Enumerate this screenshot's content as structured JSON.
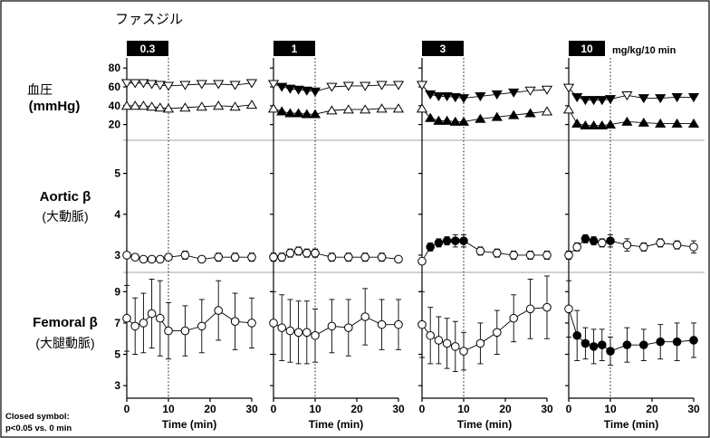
{
  "figure": {
    "drug_label": "ファスジル",
    "dose_unit": "mg/kg/10 min",
    "note_line1": "Closed symbol:",
    "note_line2": "p<0.05 vs. 0 min",
    "doses": [
      "0.3",
      "1",
      "3",
      "10"
    ],
    "rows": [
      {
        "label1": "血圧",
        "label2": "(mmHg)"
      },
      {
        "label1": "Aortic β",
        "label2": "(大動脈)"
      },
      {
        "label1": "Femoral β",
        "label2": "(大腿動脈)"
      }
    ]
  },
  "chart_data": [
    {
      "type": "line",
      "title": "",
      "row_label": "血圧 (mmHg)",
      "xlabel": "Time (min)",
      "xlim": [
        0,
        30
      ],
      "xticks": [
        0,
        10,
        20,
        30
      ],
      "ylim": [
        10,
        85
      ],
      "yticks": [
        20,
        40,
        60,
        80
      ],
      "infusion_window": [
        0,
        10
      ],
      "marker_style": "triangle",
      "panels": [
        {
          "dose": "0.3",
          "x": [
            0,
            2,
            4,
            6,
            8,
            10,
            14,
            18,
            22,
            26,
            30
          ],
          "series": [
            {
              "values": [
                64,
                64,
                64,
                63,
                62,
                61,
                62,
                63,
                63,
                62,
                64
              ],
              "closed": [
                0,
                0,
                0,
                0,
                0,
                0,
                0,
                0,
                0,
                0,
                0
              ],
              "direction": "down"
            },
            {
              "values": [
                40,
                40,
                40,
                39,
                38,
                37,
                38,
                39,
                40,
                39,
                41
              ],
              "closed": [
                0,
                0,
                0,
                0,
                0,
                0,
                0,
                0,
                0,
                0,
                0
              ],
              "direction": "up"
            }
          ]
        },
        {
          "dose": "1",
          "x": [
            0,
            2,
            4,
            6,
            8,
            10,
            14,
            18,
            22,
            26,
            30
          ],
          "series": [
            {
              "values": [
                63,
                60,
                58,
                57,
                56,
                55,
                60,
                61,
                61,
                62,
                62
              ],
              "closed": [
                0,
                1,
                1,
                1,
                1,
                1,
                0,
                0,
                0,
                0,
                0
              ],
              "direction": "down"
            },
            {
              "values": [
                37,
                34,
                32,
                32,
                31,
                31,
                35,
                36,
                36,
                37,
                37
              ],
              "closed": [
                0,
                1,
                1,
                1,
                1,
                1,
                0,
                0,
                0,
                0,
                0
              ],
              "direction": "up"
            }
          ]
        },
        {
          "dose": "3",
          "x": [
            0,
            2,
            4,
            6,
            8,
            10,
            14,
            18,
            22,
            26,
            30
          ],
          "series": [
            {
              "values": [
                62,
                52,
                50,
                50,
                49,
                48,
                50,
                52,
                54,
                56,
                57
              ],
              "closed": [
                0,
                1,
                1,
                1,
                1,
                1,
                1,
                1,
                1,
                0,
                0
              ],
              "direction": "down"
            },
            {
              "values": [
                37,
                27,
                24,
                24,
                23,
                23,
                26,
                28,
                30,
                32,
                34
              ],
              "closed": [
                0,
                1,
                1,
                1,
                1,
                1,
                1,
                1,
                1,
                1,
                0
              ],
              "direction": "up"
            }
          ]
        },
        {
          "dose": "10",
          "x": [
            0,
            2,
            4,
            6,
            8,
            10,
            14,
            18,
            22,
            26,
            30
          ],
          "series": [
            {
              "values": [
                59,
                49,
                46,
                46,
                46,
                47,
                51,
                48,
                48,
                49,
                49
              ],
              "closed": [
                0,
                1,
                1,
                1,
                1,
                1,
                0,
                1,
                1,
                1,
                1
              ],
              "direction": "down"
            },
            {
              "values": [
                36,
                21,
                19,
                19,
                19,
                20,
                23,
                22,
                21,
                21,
                21
              ],
              "closed": [
                0,
                1,
                1,
                1,
                1,
                1,
                1,
                1,
                1,
                1,
                1
              ],
              "direction": "up"
            }
          ]
        }
      ]
    },
    {
      "type": "line",
      "title": "",
      "row_label": "Aortic β (大動脈)",
      "xlabel": "Time (min)",
      "xlim": [
        0,
        30
      ],
      "xticks": [
        0,
        10,
        20,
        30
      ],
      "ylim": [
        2.6,
        5.7
      ],
      "yticks": [
        3,
        4,
        5
      ],
      "infusion_window": [
        0,
        10
      ],
      "marker_style": "circle",
      "panels": [
        {
          "dose": "0.3",
          "x": [
            0,
            2,
            4,
            6,
            8,
            10,
            14,
            18,
            22,
            26,
            30
          ],
          "series": [
            {
              "values": [
                3.0,
                2.95,
                2.9,
                2.9,
                2.9,
                2.95,
                3.0,
                2.9,
                2.95,
                2.95,
                2.95
              ],
              "err": [
                0,
                0.05,
                0.05,
                0.05,
                0.05,
                0.08,
                0.1,
                0.05,
                0.1,
                0.1,
                0.1
              ],
              "closed": [
                0,
                0,
                0,
                0,
                0,
                0,
                0,
                0,
                0,
                0,
                0
              ]
            }
          ]
        },
        {
          "dose": "1",
          "x": [
            0,
            2,
            4,
            6,
            8,
            10,
            14,
            18,
            22,
            26,
            30
          ],
          "series": [
            {
              "values": [
                2.95,
                2.95,
                3.05,
                3.1,
                3.05,
                3.05,
                2.95,
                2.95,
                2.95,
                2.95,
                2.9
              ],
              "err": [
                0.1,
                0.1,
                0.1,
                0.1,
                0.1,
                0.1,
                0.1,
                0.1,
                0.1,
                0.1,
                0.05
              ],
              "closed": [
                0,
                0,
                0,
                0,
                0,
                0,
                0,
                0,
                0,
                0,
                0
              ]
            }
          ]
        },
        {
          "dose": "3",
          "x": [
            0,
            2,
            4,
            6,
            8,
            10,
            14,
            18,
            22,
            26,
            30
          ],
          "series": [
            {
              "values": [
                2.85,
                3.2,
                3.3,
                3.35,
                3.35,
                3.35,
                3.1,
                3.05,
                3.0,
                3.0,
                3.0
              ],
              "err": [
                0.05,
                0.1,
                0.1,
                0.1,
                0.15,
                0.15,
                0.1,
                0.1,
                0.1,
                0.1,
                0.1
              ],
              "closed": [
                0,
                1,
                1,
                1,
                1,
                1,
                0,
                0,
                0,
                0,
                0
              ]
            }
          ]
        },
        {
          "dose": "10",
          "x": [
            0,
            2,
            4,
            6,
            8,
            10,
            14,
            18,
            22,
            26,
            30
          ],
          "series": [
            {
              "values": [
                3.0,
                3.2,
                3.4,
                3.35,
                3.3,
                3.35,
                3.25,
                3.2,
                3.3,
                3.25,
                3.2
              ],
              "err": [
                0.1,
                0.1,
                0.1,
                0.1,
                0.1,
                0.15,
                0.15,
                0.1,
                0.1,
                0.1,
                0.15
              ],
              "closed": [
                0,
                0,
                1,
                1,
                0,
                1,
                0,
                0,
                0,
                0,
                0
              ]
            }
          ]
        }
      ]
    },
    {
      "type": "line",
      "title": "",
      "row_label": "Femoral β (大腿動脈)",
      "xlabel": "Time (min)",
      "xlim": [
        0,
        30
      ],
      "xticks": [
        0,
        10,
        20,
        30
      ],
      "ylim": [
        2.2,
        10.0
      ],
      "yticks": [
        3,
        5,
        7,
        9
      ],
      "infusion_window": [
        0,
        10
      ],
      "marker_style": "circle",
      "panels": [
        {
          "dose": "0.3",
          "x": [
            0,
            2,
            4,
            6,
            8,
            10,
            14,
            18,
            22,
            26,
            30
          ],
          "series": [
            {
              "values": [
                7.3,
                6.8,
                7.0,
                7.6,
                7.3,
                6.5,
                6.5,
                6.8,
                7.8,
                7.1,
                7.0
              ],
              "err": [
                2.1,
                1.8,
                1.9,
                2.2,
                2.4,
                1.8,
                1.6,
                1.7,
                1.9,
                1.8,
                1.6
              ],
              "closed": [
                0,
                0,
                0,
                0,
                0,
                0,
                0,
                0,
                0,
                0,
                0
              ]
            }
          ]
        },
        {
          "dose": "1",
          "x": [
            0,
            2,
            4,
            6,
            8,
            10,
            14,
            18,
            22,
            26,
            30
          ],
          "series": [
            {
              "values": [
                7.0,
                6.7,
                6.5,
                6.4,
                6.4,
                6.2,
                6.8,
                6.7,
                7.4,
                6.9,
                6.9
              ],
              "err": [
                2.0,
                2.1,
                2.0,
                2.0,
                2.0,
                1.7,
                1.7,
                1.8,
                1.8,
                1.6,
                1.6
              ],
              "closed": [
                0,
                0,
                0,
                0,
                0,
                0,
                0,
                0,
                0,
                0,
                0
              ]
            }
          ]
        },
        {
          "dose": "3",
          "x": [
            0,
            2,
            4,
            6,
            8,
            10,
            14,
            18,
            22,
            26,
            30
          ],
          "series": [
            {
              "values": [
                6.9,
                6.2,
                5.9,
                5.7,
                5.5,
                5.2,
                5.7,
                6.4,
                7.3,
                7.9,
                8.0
              ],
              "err": [
                2.1,
                1.8,
                1.5,
                1.6,
                1.6,
                1.2,
                1.3,
                1.4,
                1.5,
                1.9,
                2.0
              ],
              "closed": [
                0,
                0,
                0,
                0,
                0,
                0,
                0,
                0,
                0,
                0,
                0
              ]
            }
          ]
        },
        {
          "dose": "10",
          "x": [
            0,
            2,
            4,
            6,
            8,
            10,
            14,
            18,
            22,
            26,
            30
          ],
          "series": [
            {
              "values": [
                7.9,
                6.2,
                5.7,
                5.5,
                5.6,
                5.2,
                5.6,
                5.6,
                5.8,
                5.8,
                5.9
              ],
              "err": [
                1.8,
                1.6,
                1.0,
                1.1,
                1.0,
                0.9,
                1.1,
                1.0,
                1.1,
                1.2,
                1.1
              ],
              "closed": [
                0,
                1,
                1,
                1,
                1,
                1,
                1,
                1,
                1,
                1,
                1
              ]
            }
          ]
        }
      ]
    }
  ]
}
